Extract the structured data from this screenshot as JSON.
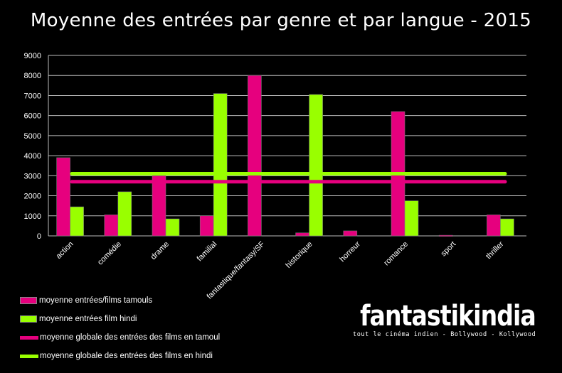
{
  "chart_data": {
    "type": "bar",
    "title": "Moyenne des entrées par genre et par langue - 2015",
    "categories": [
      "action",
      "comédie",
      "drame",
      "familial",
      "fantastique/fantasy/SF",
      "historique",
      "horreur",
      "romance",
      "sport",
      "thriller"
    ],
    "series": [
      {
        "name": "moyenne entrées/films tamouls",
        "color": "#e6007e",
        "values": [
          3900,
          1050,
          3000,
          1000,
          8000,
          150,
          250,
          6200,
          30,
          1050
        ]
      },
      {
        "name": "moyenne entrées film hindi",
        "color": "#99ff00",
        "values": [
          1450,
          2200,
          850,
          7100,
          null,
          7050,
          null,
          1750,
          null,
          850
        ]
      }
    ],
    "reference_lines": [
      {
        "name": "moyenne globale des entrées des films  en tamoul",
        "color": "#e6007e",
        "value": 2700
      },
      {
        "name": "moyenne globale des entrées des films  en hindi",
        "color": "#99ff00",
        "value": 3100
      }
    ],
    "ylim": [
      0,
      9000
    ],
    "yticks": [
      0,
      1000,
      2000,
      3000,
      4000,
      5000,
      6000,
      7000,
      8000,
      9000
    ],
    "xlabel": "",
    "ylabel": "",
    "grid": true,
    "legend_position": "bottom-left"
  },
  "logo": {
    "wordmark": "fantastikindia",
    "tagline": "tout le cinéma indien - Bollywood - Kollywood"
  }
}
